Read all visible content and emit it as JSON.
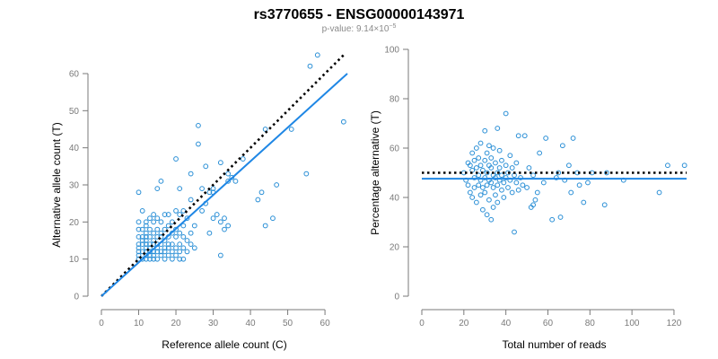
{
  "title": "rs3770655 - ENSG00000143971",
  "subtitle": {
    "prefix": "p-value: 9.14×10",
    "exponent": "−5"
  },
  "colors": {
    "points": "#2a8fd6",
    "fit": "#1f87e5",
    "reference": "#000000",
    "axis": "#7a7a7a"
  },
  "chart_data": [
    {
      "type": "scatter",
      "xlabel": "Reference allele count (C)",
      "ylabel": "Alternative allele count (T)",
      "xlim": [
        0,
        66
      ],
      "ylim": [
        0,
        62
      ],
      "xticks": [
        0,
        10,
        20,
        30,
        40,
        50,
        60
      ],
      "yticks": [
        0,
        10,
        20,
        30,
        40,
        50,
        60
      ],
      "grid": false,
      "lines": [
        {
          "style": "dotted",
          "color": "#000000",
          "x": [
            0,
            65
          ],
          "y": [
            0,
            65
          ]
        },
        {
          "style": "solid",
          "color": "#1f87e5",
          "x": [
            0,
            66
          ],
          "y": [
            0,
            60
          ]
        }
      ],
      "points": [
        [
          10,
          10
        ],
        [
          10,
          11
        ],
        [
          10,
          12
        ],
        [
          10,
          13
        ],
        [
          10,
          14
        ],
        [
          10,
          16
        ],
        [
          10,
          18
        ],
        [
          10,
          20
        ],
        [
          10,
          28
        ],
        [
          11,
          10
        ],
        [
          11,
          12
        ],
        [
          11,
          14
        ],
        [
          11,
          15
        ],
        [
          11,
          16
        ],
        [
          11,
          18
        ],
        [
          11,
          23
        ],
        [
          12,
          10
        ],
        [
          12,
          11
        ],
        [
          12,
          12
        ],
        [
          12,
          13
        ],
        [
          12,
          14
        ],
        [
          12,
          15
        ],
        [
          12,
          16
        ],
        [
          12,
          17
        ],
        [
          12,
          19
        ],
        [
          12,
          20
        ],
        [
          13,
          10
        ],
        [
          13,
          11
        ],
        [
          13,
          12
        ],
        [
          13,
          13
        ],
        [
          13,
          14
        ],
        [
          13,
          16
        ],
        [
          13,
          18
        ],
        [
          13,
          21
        ],
        [
          14,
          10
        ],
        [
          14,
          11
        ],
        [
          14,
          12
        ],
        [
          14,
          14
        ],
        [
          14,
          15
        ],
        [
          14,
          17
        ],
        [
          14,
          20
        ],
        [
          14,
          22
        ],
        [
          15,
          10
        ],
        [
          15,
          12
        ],
        [
          15,
          13
        ],
        [
          15,
          14
        ],
        [
          15,
          16
        ],
        [
          15,
          18
        ],
        [
          15,
          21
        ],
        [
          15,
          29
        ],
        [
          16,
          11
        ],
        [
          16,
          12
        ],
        [
          16,
          14
        ],
        [
          16,
          16
        ],
        [
          16,
          17
        ],
        [
          16,
          20
        ],
        [
          16,
          31
        ],
        [
          17,
          10
        ],
        [
          17,
          12
        ],
        [
          17,
          13
        ],
        [
          17,
          15
        ],
        [
          17,
          18
        ],
        [
          17,
          22
        ],
        [
          18,
          11
        ],
        [
          18,
          13
        ],
        [
          18,
          14
        ],
        [
          18,
          16
        ],
        [
          18,
          19
        ],
        [
          18,
          22
        ],
        [
          19,
          10
        ],
        [
          19,
          12
        ],
        [
          19,
          14
        ],
        [
          19,
          17
        ],
        [
          19,
          20
        ],
        [
          20,
          11
        ],
        [
          20,
          13
        ],
        [
          20,
          16
        ],
        [
          20,
          18
        ],
        [
          20,
          23
        ],
        [
          20,
          37
        ],
        [
          21,
          10
        ],
        [
          21,
          12
        ],
        [
          21,
          14
        ],
        [
          21,
          17
        ],
        [
          21,
          22
        ],
        [
          21,
          29
        ],
        [
          22,
          10
        ],
        [
          22,
          13
        ],
        [
          22,
          16
        ],
        [
          22,
          19
        ],
        [
          22,
          23
        ],
        [
          23,
          12
        ],
        [
          23,
          15
        ],
        [
          23,
          21
        ],
        [
          24,
          14
        ],
        [
          24,
          17
        ],
        [
          24,
          26
        ],
        [
          24,
          33
        ],
        [
          25,
          13
        ],
        [
          25,
          19
        ],
        [
          26,
          41
        ],
        [
          26,
          46
        ],
        [
          27,
          23
        ],
        [
          27,
          29
        ],
        [
          28,
          25
        ],
        [
          28,
          35
        ],
        [
          29,
          17
        ],
        [
          29,
          28
        ],
        [
          30,
          21
        ],
        [
          30,
          28
        ],
        [
          30,
          29
        ],
        [
          31,
          22
        ],
        [
          32,
          11
        ],
        [
          32,
          20
        ],
        [
          32,
          36
        ],
        [
          33,
          18
        ],
        [
          33,
          21
        ],
        [
          34,
          19
        ],
        [
          34,
          31
        ],
        [
          34,
          33
        ],
        [
          35,
          32
        ],
        [
          36,
          31
        ],
        [
          38,
          37
        ],
        [
          42,
          26
        ],
        [
          43,
          28
        ],
        [
          44,
          19
        ],
        [
          44,
          45
        ],
        [
          46,
          21
        ],
        [
          47,
          30
        ],
        [
          51,
          45
        ],
        [
          55,
          33
        ],
        [
          56,
          62
        ],
        [
          58,
          65
        ],
        [
          65,
          47
        ]
      ]
    },
    {
      "type": "scatter",
      "xlabel": "Total number of reads",
      "ylabel": "Percentage alternative (T)",
      "xlim": [
        0,
        126
      ],
      "ylim": [
        0,
        100
      ],
      "xticks": [
        0,
        20,
        40,
        60,
        80,
        100,
        120
      ],
      "yticks": [
        0,
        20,
        40,
        60,
        80,
        100
      ],
      "grid": false,
      "lines": [
        {
          "style": "dotted",
          "color": "#000000",
          "x": [
            0,
            126
          ],
          "y": [
            50,
            50
          ]
        },
        {
          "style": "solid",
          "color": "#1f87e5",
          "x": [
            0,
            126
          ],
          "y": [
            47.6,
            47.6
          ]
        }
      ],
      "points": [
        [
          20,
          50
        ],
        [
          21,
          47
        ],
        [
          22,
          54
        ],
        [
          22,
          45
        ],
        [
          23,
          53
        ],
        [
          23,
          42
        ],
        [
          24,
          58
        ],
        [
          24,
          51
        ],
        [
          24,
          40
        ],
        [
          25,
          48
        ],
        [
          25,
          55
        ],
        [
          25,
          44
        ],
        [
          26,
          52
        ],
        [
          26,
          60
        ],
        [
          26,
          38
        ],
        [
          27,
          49
        ],
        [
          27,
          45
        ],
        [
          27,
          56
        ],
        [
          28,
          47
        ],
        [
          28,
          53
        ],
        [
          28,
          41
        ],
        [
          28,
          62
        ],
        [
          29,
          51
        ],
        [
          29,
          44
        ],
        [
          29,
          35
        ],
        [
          30,
          48
        ],
        [
          30,
          55
        ],
        [
          30,
          42
        ],
        [
          30,
          67
        ],
        [
          31,
          50
        ],
        [
          31,
          45
        ],
        [
          31,
          33
        ],
        [
          31,
          58
        ],
        [
          32,
          61
        ],
        [
          32,
          47
        ],
        [
          32,
          53
        ],
        [
          32,
          39
        ],
        [
          33,
          46
        ],
        [
          33,
          52
        ],
        [
          33,
          31
        ],
        [
          33,
          56
        ],
        [
          34,
          49
        ],
        [
          34,
          44
        ],
        [
          34,
          60
        ],
        [
          34,
          36
        ],
        [
          35,
          48
        ],
        [
          35,
          54
        ],
        [
          35,
          41
        ],
        [
          36,
          50
        ],
        [
          36,
          45
        ],
        [
          36,
          68
        ],
        [
          36,
          38
        ],
        [
          37,
          47
        ],
        [
          37,
          52
        ],
        [
          37,
          59
        ],
        [
          38,
          43
        ],
        [
          38,
          49
        ],
        [
          38,
          55
        ],
        [
          39,
          46
        ],
        [
          39,
          40
        ],
        [
          40,
          48
        ],
        [
          40,
          53
        ],
        [
          40,
          74
        ],
        [
          41,
          44
        ],
        [
          41,
          50
        ],
        [
          42,
          47
        ],
        [
          42,
          57
        ],
        [
          43,
          42
        ],
        [
          43,
          52
        ],
        [
          44,
          49
        ],
        [
          44,
          26
        ],
        [
          45,
          46
        ],
        [
          45,
          54
        ],
        [
          46,
          43
        ],
        [
          46,
          65
        ],
        [
          47,
          48
        ],
        [
          48,
          45
        ],
        [
          49,
          65
        ],
        [
          50,
          44
        ],
        [
          51,
          52
        ],
        [
          52,
          36
        ],
        [
          53,
          37
        ],
        [
          53,
          49
        ],
        [
          54,
          39
        ],
        [
          55,
          42
        ],
        [
          56,
          58
        ],
        [
          58,
          46
        ],
        [
          59,
          64
        ],
        [
          62,
          31
        ],
        [
          64,
          48
        ],
        [
          65,
          50
        ],
        [
          66,
          32
        ],
        [
          67,
          61
        ],
        [
          68,
          47
        ],
        [
          70,
          53
        ],
        [
          71,
          42
        ],
        [
          72,
          64
        ],
        [
          74,
          50
        ],
        [
          75,
          45
        ],
        [
          77,
          38
        ],
        [
          79,
          46
        ],
        [
          81,
          50
        ],
        [
          87,
          37
        ],
        [
          88,
          50
        ],
        [
          96,
          47
        ],
        [
          113,
          42
        ],
        [
          117,
          53
        ],
        [
          125,
          53
        ]
      ]
    }
  ]
}
